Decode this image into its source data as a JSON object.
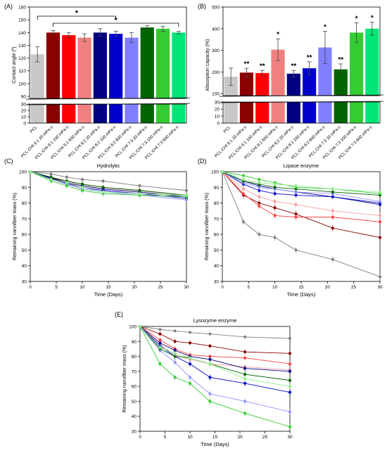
{
  "figure": {
    "panels": [
      {
        "id": "A",
        "letter": "(A)",
        "type": "bar",
        "ylabel": "Contact angle (º)",
        "categories": [
          "PCL",
          "PCL:CHI 9:1 20 mPa·s",
          "PCL:CHI 9:1 100 mPa·s",
          "PCL:CHI 9:1 600 mPa·s",
          "PCL:CHI 8:2 20 mPa·s",
          "PCL:CHI 8:2 100 mPa·s",
          "PCL:CHI 8:2 600 mPa·s",
          "PCL:CHI 7:3 20 mPa·s",
          "PCL:CHI 7:3 100 mPa·s",
          "PCL:CHI 7:3 600 mPa·s"
        ],
        "values": [
          123,
          140,
          138,
          136,
          140,
          139,
          136,
          144,
          143,
          140
        ],
        "errors": [
          6,
          1.5,
          2,
          3,
          3,
          2,
          4,
          1.5,
          2,
          1
        ],
        "colors": [
          "#c8c8c8",
          "#8b0000",
          "#ff0000",
          "#f08080",
          "#000080",
          "#0000cd",
          "#8080ff",
          "#006400",
          "#32cd32",
          "#00e676"
        ],
        "ylim_top": [
          90,
          160
        ],
        "ylim_bottom": [
          0,
          30
        ],
        "yticks_top": [
          90,
          100,
          110,
          120,
          130,
          140,
          150,
          160
        ],
        "yticks_bottom": [
          0,
          10,
          20,
          30
        ],
        "significance": [
          {
            "text": "*",
            "from": 0,
            "to": 5
          },
          {
            "text": "*",
            "from": 1,
            "to": 9
          }
        ]
      },
      {
        "id": "B",
        "letter": "(B)",
        "type": "bar",
        "ylabel": "Absorption capacity (%)",
        "categories": [
          "PCL",
          "PCL:CHI 9:1 20 mPa·s",
          "PCL:CHI 9:1 100 mPa·s",
          "PCL:CHI 9:1 600 mPa·s",
          "PCL:CHI 8:2 20 mPa·s",
          "PCL:CHI 8:2 100 mPa·s",
          "PCL:CHI 8:2 600 mPa·s",
          "PCL:CHI 7:3 20 mPa·s",
          "PCL:CHI 7:3 100 mPa·s",
          "PCL:CHI 7:3 600 mPa·s"
        ],
        "values": [
          178,
          197,
          195,
          303,
          192,
          217,
          313,
          212,
          382,
          400
        ],
        "errors": [
          40,
          20,
          12,
          50,
          15,
          30,
          75,
          25,
          45,
          30
        ],
        "stars": [
          "",
          "**",
          "**",
          "*",
          "**",
          "**",
          "*",
          "**",
          "*",
          "*"
        ],
        "colors": [
          "#c8c8c8",
          "#8b0000",
          "#ff0000",
          "#f08080",
          "#000080",
          "#0000cd",
          "#8080ff",
          "#006400",
          "#32cd32",
          "#00e676"
        ],
        "ylim_top": [
          100,
          500
        ],
        "ylim_bottom": [
          0,
          30
        ],
        "yticks_top": [
          100,
          200,
          300,
          400,
          500
        ],
        "yticks_bottom": [
          0,
          10,
          20,
          30
        ]
      },
      {
        "id": "C",
        "letter": "(C)",
        "type": "line",
        "title": "Hydrolytic",
        "xlabel": "Time (Days)",
        "ylabel": "Remaining nanofiber mass (%)",
        "xlim": [
          0,
          30
        ],
        "ylim": [
          30,
          100
        ],
        "xticks": [
          0,
          5,
          10,
          15,
          20,
          25,
          30
        ],
        "yticks": [
          30,
          40,
          50,
          60,
          70,
          80,
          90,
          100
        ],
        "x": [
          0,
          4,
          7,
          10,
          14,
          21,
          30
        ],
        "series": [
          {
            "color": "#808080",
            "values": [
              100,
              98.5,
              96.5,
              95,
              94,
              91,
              88
            ],
            "err": 1.5
          },
          {
            "color": "#8b0000",
            "values": [
              100,
              96,
              94,
              92,
              90,
              88,
              85
            ],
            "err": 1.5
          },
          {
            "color": "#ff4040",
            "values": [
              100,
              95.5,
              93,
              91,
              89,
              87,
              84
            ],
            "err": 1.5
          },
          {
            "color": "#f4a0a0",
            "values": [
              100,
              95,
              92,
              90,
              88,
              86,
              83
            ],
            "err": 1.5
          },
          {
            "color": "#000080",
            "values": [
              100,
              96,
              93,
              91,
              89,
              87,
              84
            ],
            "err": 1.5
          },
          {
            "color": "#0000cd",
            "values": [
              100,
              95.5,
              92.5,
              90,
              88,
              86,
              83
            ],
            "err": 1.5
          },
          {
            "color": "#9090ff",
            "values": [
              100,
              95,
              92,
              89,
              87,
              85,
              82
            ],
            "err": 1.5
          },
          {
            "color": "#006400",
            "values": [
              100,
              96.5,
              94,
              92,
              90,
              88,
              85
            ],
            "err": 1.5
          },
          {
            "color": "#32cd32",
            "values": [
              100,
              94,
              91,
              88,
              86,
              85,
              84
            ],
            "err": 2
          },
          {
            "color": "#90ee90",
            "values": [
              100,
              95,
              93,
              90,
              87,
              86,
              85
            ],
            "err": 1.5
          }
        ]
      },
      {
        "id": "D",
        "letter": "(D)",
        "type": "line",
        "title": "Lipase enzyme",
        "xlabel": "Time (Days)",
        "ylabel": "Remaining nanofiber mass (%)",
        "xlim": [
          0,
          30
        ],
        "ylim": [
          30,
          100
        ],
        "xticks": [
          0,
          5,
          10,
          15,
          20,
          25,
          30
        ],
        "yticks": [
          30,
          40,
          50,
          60,
          70,
          80,
          90,
          100
        ],
        "x": [
          0,
          4,
          7,
          10,
          14,
          21,
          30
        ],
        "series": [
          {
            "color": "#808080",
            "values": [
              100,
              68,
              60,
              58,
              50,
              44,
              33
            ],
            "err": 2
          },
          {
            "color": "#8b0000",
            "values": [
              100,
              85,
              80,
              77,
              73,
              64,
              58
            ],
            "err": 2
          },
          {
            "color": "#ff4040",
            "values": [
              100,
              86,
              78,
              72,
              71,
              71,
              68
            ],
            "err": 2
          },
          {
            "color": "#f4a0a0",
            "values": [
              100,
              89,
              84,
              81,
              79,
              75,
              72
            ],
            "err": 2
          },
          {
            "color": "#000080",
            "values": [
              100,
              94,
              91,
              89,
              87,
              84,
              79
            ],
            "err": 1.5
          },
          {
            "color": "#0000cd",
            "values": [
              100,
              92,
              88,
              86,
              85,
              84,
              80
            ],
            "err": 1.5
          },
          {
            "color": "#9090ff",
            "values": [
              100,
              93,
              90,
              89,
              87,
              86,
              81
            ],
            "err": 1.5
          },
          {
            "color": "#006400",
            "values": [
              100,
              94,
              92,
              90,
              89,
              87,
              85
            ],
            "err": 1.5
          },
          {
            "color": "#32cd32",
            "values": [
              100,
              97.5,
              95,
              93,
              90,
              89,
              86
            ],
            "err": 1
          },
          {
            "color": "#90ee90",
            "values": [
              100,
              95,
              93,
              92,
              91,
              89,
              87
            ],
            "err": 1
          }
        ]
      },
      {
        "id": "E",
        "letter": "(E)",
        "type": "line",
        "title": "Lysozyme enzyme",
        "xlabel": "Time (Days)",
        "ylabel": "Remaining nanofiber mass (%)",
        "xlim": [
          0,
          30
        ],
        "ylim": [
          30,
          100
        ],
        "xticks": [
          0,
          5,
          10,
          15,
          20,
          25,
          30
        ],
        "yticks": [
          30,
          40,
          50,
          60,
          70,
          80,
          90,
          100
        ],
        "x": [
          0,
          4,
          7,
          10,
          14,
          21,
          30
        ],
        "series": [
          {
            "color": "#808080",
            "values": [
              100,
              98,
              97,
              96,
              95,
              93,
              92
            ],
            "err": 1
          },
          {
            "color": "#8b0000",
            "values": [
              100,
              95,
              90,
              89,
              87,
              83,
              82
            ],
            "err": 1.5
          },
          {
            "color": "#ff4040",
            "values": [
              100,
              91,
              85,
              81,
              80,
              79,
              75
            ],
            "err": 1.5
          },
          {
            "color": "#f4a0a0",
            "values": [
              100,
              88,
              81,
              78,
              75,
              73,
              71
            ],
            "err": 1.5
          },
          {
            "color": "#000080",
            "values": [
              100,
              89,
              84,
              80,
              78,
              72,
              70
            ],
            "err": 2
          },
          {
            "color": "#0000cd",
            "values": [
              100,
              87,
              80,
              75,
              66,
              62,
              56
            ],
            "err": 2
          },
          {
            "color": "#9090ff",
            "values": [
              100,
              84,
              76,
              66,
              55,
              50,
              43
            ],
            "err": 2
          },
          {
            "color": "#006400",
            "values": [
              100,
              85,
              80,
              79,
              75,
              68,
              64
            ],
            "err": 2
          },
          {
            "color": "#32cd32",
            "values": [
              100,
              75,
              66,
              62,
              50,
              42,
              33
            ],
            "err": 2
          },
          {
            "color": "#90ee90",
            "values": [
              100,
              86,
              82,
              79,
              75,
              65,
              60
            ],
            "err": 2
          }
        ]
      }
    ]
  }
}
